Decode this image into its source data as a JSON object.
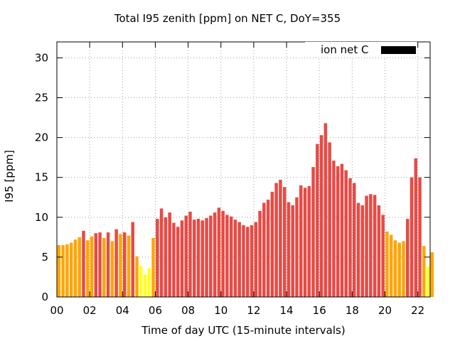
{
  "chart_data": {
    "type": "bar",
    "title": "Total I95 zenith [ppm] on NET C, DoY=355",
    "xlabel": "Time of day UTC (15-minute intervals)",
    "ylabel": "I95 [ppm]",
    "ylim": [
      0,
      32
    ],
    "xlim_hours": [
      0,
      22.75
    ],
    "yticks": [
      0,
      5,
      10,
      15,
      20,
      25,
      30
    ],
    "xticks": [
      "00",
      "02",
      "04",
      "06",
      "08",
      "10",
      "12",
      "14",
      "16",
      "18",
      "20",
      "22"
    ],
    "grid": true,
    "legend": {
      "label": "ion net C",
      "color": "#000000",
      "position": "top-right"
    },
    "interval_hours": 0.25,
    "values": [
      6.5,
      6.5,
      6.6,
      6.8,
      7.2,
      7.5,
      8.3,
      7.1,
      7.6,
      8.0,
      8.1,
      7.4,
      8.1,
      7.0,
      8.5,
      7.9,
      8.1,
      7.7,
      9.4,
      5.1,
      3.9,
      2.8,
      3.6,
      7.4,
      9.8,
      11.1,
      10.0,
      10.6,
      9.3,
      8.8,
      9.6,
      10.2,
      10.7,
      9.7,
      9.8,
      9.6,
      9.9,
      10.2,
      10.6,
      11.2,
      10.8,
      10.3,
      10.1,
      9.7,
      9.4,
      9.0,
      8.8,
      9.0,
      9.4,
      10.8,
      11.8,
      12.2,
      13.2,
      14.3,
      14.7,
      13.8,
      11.9,
      11.5,
      12.5,
      14.0,
      13.7,
      13.9,
      16.3,
      19.2,
      20.3,
      21.8,
      19.4,
      17.1,
      16.4,
      16.7,
      15.9,
      14.9,
      14.3,
      11.8,
      11.5,
      12.7,
      12.9,
      12.8,
      11.5,
      10.3,
      8.2,
      7.8,
      7.1,
      6.8,
      7.0,
      9.8,
      15.0,
      17.4,
      15.0,
      6.4,
      3.8,
      5.6
    ],
    "colors": [
      "#FFA500",
      "#FFA500",
      "#FFA500",
      "#FFA500",
      "#FFA500",
      "#FFA500",
      "#E84A45",
      "#FFA500",
      "#FFA500",
      "#E84A45",
      "#E84A45",
      "#FFA500",
      "#E84A45",
      "#FFA500",
      "#E84A45",
      "#FFA500",
      "#E84A45",
      "#FFA500",
      "#E84A45",
      "#FFA500",
      "#FFFF20",
      "#FFFF20",
      "#FFFF20",
      "#FFA500",
      "#E84A45",
      "#E84A45",
      "#E84A45",
      "#E84A45",
      "#E84A45",
      "#E84A45",
      "#E84A45",
      "#E84A45",
      "#E84A45",
      "#E84A45",
      "#E84A45",
      "#E84A45",
      "#E84A45",
      "#E84A45",
      "#E84A45",
      "#E84A45",
      "#E84A45",
      "#E84A45",
      "#E84A45",
      "#E84A45",
      "#E84A45",
      "#E84A45",
      "#E84A45",
      "#E84A45",
      "#E84A45",
      "#E84A45",
      "#E84A45",
      "#E84A45",
      "#E84A45",
      "#E84A45",
      "#E84A45",
      "#E84A45",
      "#E84A45",
      "#E84A45",
      "#E84A45",
      "#E84A45",
      "#E84A45",
      "#E84A45",
      "#E84A45",
      "#E84A45",
      "#E84A45",
      "#E84A45",
      "#E84A45",
      "#E84A45",
      "#E84A45",
      "#E84A45",
      "#E84A45",
      "#E84A45",
      "#E84A45",
      "#E84A45",
      "#E84A45",
      "#E84A45",
      "#E84A45",
      "#E84A45",
      "#E84A45",
      "#E84A45",
      "#FFA500",
      "#FFA500",
      "#FFA500",
      "#FFA500",
      "#FFA500",
      "#E84A45",
      "#E84A45",
      "#E84A45",
      "#E84A45",
      "#FFA500",
      "#FFFF20",
      "#FFA500"
    ]
  }
}
